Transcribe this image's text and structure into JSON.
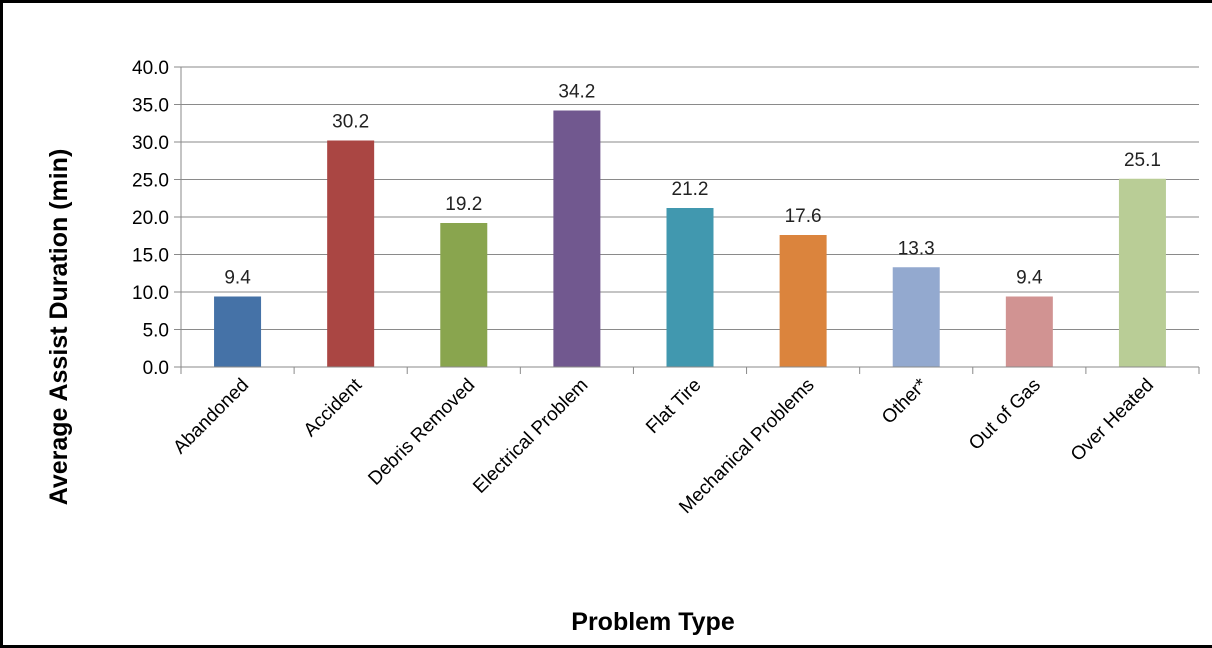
{
  "chart_data": {
    "type": "bar",
    "title": "",
    "xlabel": "Problem Type",
    "ylabel": "Average Assist Duration (min)",
    "ylim": [
      0,
      40
    ],
    "ytick_step": 5,
    "ytick_labels": [
      "0.0",
      "5.0",
      "10.0",
      "15.0",
      "20.0",
      "25.0",
      "30.0",
      "35.0",
      "40.0"
    ],
    "grid": true,
    "legend": "none",
    "categories": [
      "Abandoned",
      "Accident",
      "Debris Removed",
      "Electrical Problem",
      "Flat Tire",
      "Mechanical Problems",
      "Other*",
      "Out of Gas",
      "Over Heated"
    ],
    "values": [
      9.4,
      30.2,
      19.2,
      34.2,
      21.2,
      17.6,
      13.3,
      9.4,
      25.1
    ],
    "data_labels": [
      "9.4",
      "30.2",
      "19.2",
      "34.2",
      "21.2",
      "17.6",
      "13.3",
      "9.4",
      "25.1"
    ],
    "colors": [
      "#4572a7",
      "#aa4643",
      "#89a54e",
      "#71588f",
      "#4198af",
      "#db843d",
      "#93a9cf",
      "#d19392",
      "#b9cd96"
    ]
  }
}
